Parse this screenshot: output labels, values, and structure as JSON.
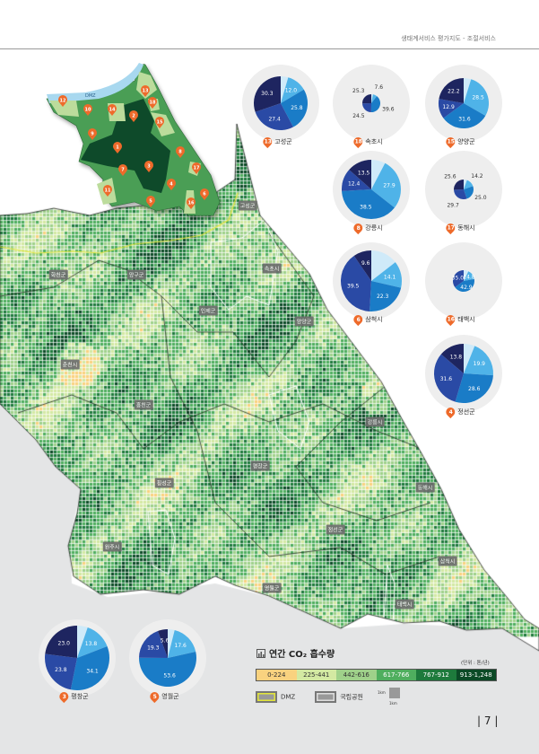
{
  "header": {
    "title": "생태계서비스 평가지도 - 조절서비스"
  },
  "colors": {
    "pie": [
      "#4fb3e8",
      "#1a7cc7",
      "#2a4aa5",
      "#1e2560",
      "#cfeaf9"
    ],
    "bins": [
      "#f9d27f",
      "#d3e9a2",
      "#9fd18a",
      "#4fae5e",
      "#1e7a3c",
      "#0b4a26"
    ],
    "marker": "#ee6a2a",
    "dmz": "#e3e63a",
    "park": "#ffffff"
  },
  "inset": {
    "dmz_label": "DMZ",
    "markers": [
      "1",
      "2",
      "3",
      "4",
      "5",
      "6",
      "7",
      "8",
      "9",
      "10",
      "11",
      "12",
      "13",
      "14",
      "15",
      "16",
      "17",
      "18"
    ]
  },
  "map_labels": [
    "고성군",
    "화천군",
    "양구군",
    "속초시",
    "인제군",
    "양양군",
    "춘천시",
    "홍천군",
    "강릉시",
    "횡성군",
    "평창군",
    "동해시",
    "정선군",
    "원주시",
    "삼척시",
    "영월군",
    "태백시"
  ],
  "pies": [
    {
      "num": "13",
      "name": "고성군",
      "values": [
        12.0,
        25.8,
        27.4,
        30.3
      ]
    },
    {
      "num": "18",
      "name": "속초시",
      "values": [
        7.6,
        39.6,
        24.5,
        25.3
      ]
    },
    {
      "num": "15",
      "name": "양양군",
      "values": [
        28.5,
        31.6,
        12.9,
        22.2
      ]
    },
    {
      "num": "8",
      "name": "강릉시",
      "values": [
        27.9,
        38.5,
        12.4,
        13.5
      ]
    },
    {
      "num": "17",
      "name": "동해시",
      "values": [
        14.2,
        25.0,
        29.7,
        25.6
      ]
    },
    {
      "num": "6",
      "name": "삼척시",
      "values": [
        14.1,
        22.3,
        39.5,
        9.6
      ]
    },
    {
      "num": "16",
      "name": "태백시",
      "values": [
        14.8,
        42.9,
        35.0
      ]
    },
    {
      "num": "4",
      "name": "정선군",
      "values": [
        19.9,
        28.6,
        31.6,
        13.8
      ]
    },
    {
      "num": "3",
      "name": "평창군",
      "values": [
        13.8,
        34.1,
        23.8,
        23.0
      ]
    },
    {
      "num": "5",
      "name": "영월군",
      "values": [
        17.6,
        53.6,
        19.3,
        5.6
      ]
    }
  ],
  "legend": {
    "title": "연간 CO₂ 흡수량",
    "unit": "(단위 : 톤/년)",
    "bins": [
      "0-224",
      "225-441",
      "442-616",
      "617-766",
      "767-912",
      "913-1,248"
    ],
    "dmz": "DMZ",
    "park": "국립공원",
    "scale_v": "1km",
    "scale_h": "1km"
  },
  "page_number": "7"
}
